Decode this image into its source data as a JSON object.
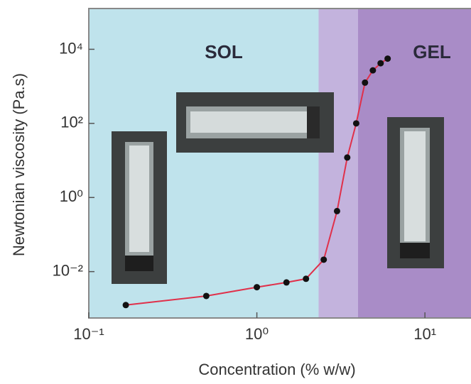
{
  "chart_data": {
    "type": "line",
    "x_label": "Concentration  (% w/w)",
    "y_label": "Newtonian viscosity  (Pa.s)",
    "x": [
      0.166,
      0.5,
      1.0,
      1.5,
      1.96,
      2.5,
      3.0,
      3.45,
      3.9,
      4.4,
      4.9,
      5.45,
      6.0
    ],
    "series": [
      {
        "color": "#e0304a",
        "values": [
          0.00125,
          0.0022,
          0.0038,
          0.0051,
          0.0064,
          0.021,
          0.43,
          12,
          100,
          1260,
          2700,
          4200,
          5600
        ]
      }
    ],
    "regions": [
      {
        "label": "SOL",
        "x": [
          0.1,
          2.33
        ],
        "color": "#bfe3ec"
      },
      {
        "x": [
          2.33,
          4.0
        ],
        "color": "#c3b3dd"
      },
      {
        "label": "GEL",
        "x": [
          4.0,
          18.8
        ],
        "color": "#a98cc7"
      }
    ],
    "log_x": true,
    "log_y": true,
    "xlim": [
      0.1,
      18.8
    ],
    "ylim": [
      0.00056,
      126000
    ],
    "xticks": [
      {
        "value": 0.1,
        "label": "10⁻¹"
      },
      {
        "value": 1,
        "label": "10⁰"
      },
      {
        "value": 10,
        "label": "10¹"
      }
    ],
    "yticks": [
      {
        "value": 0.01,
        "label": "10⁻²"
      },
      {
        "value": 1,
        "label": "10⁰"
      },
      {
        "value": 100,
        "label": "10²"
      },
      {
        "value": 10000,
        "label": "10⁴"
      }
    ]
  }
}
